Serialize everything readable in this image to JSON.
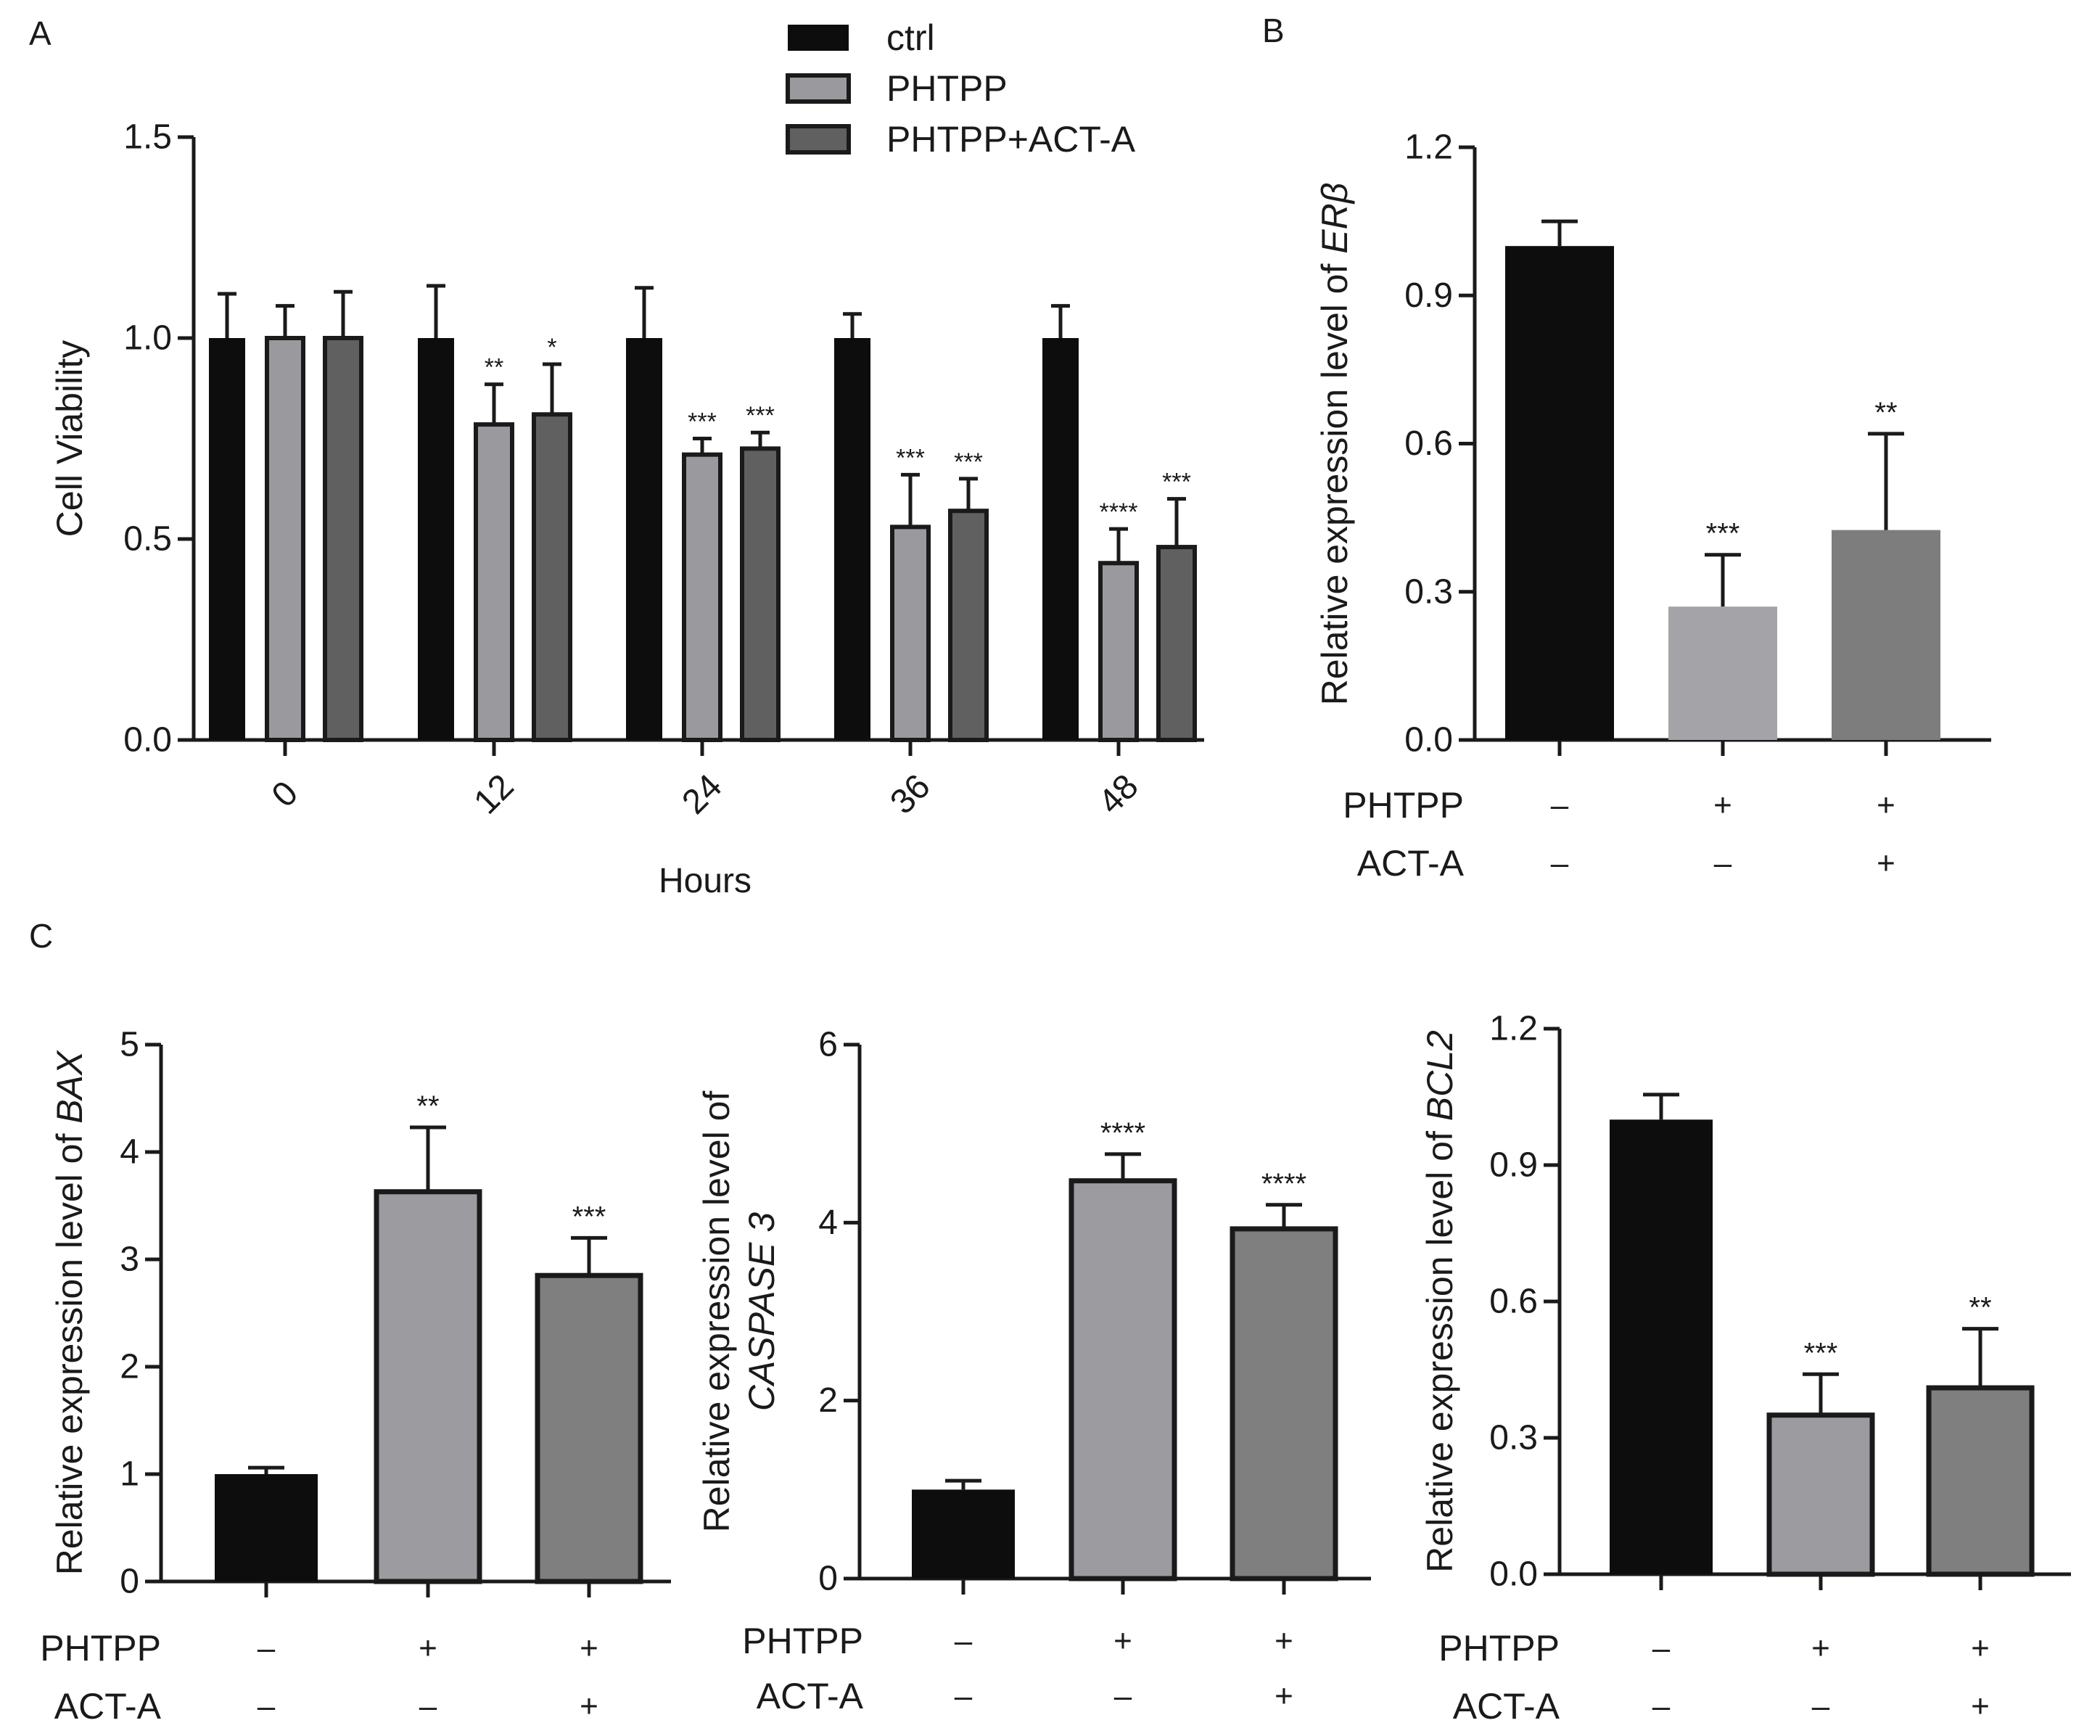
{
  "chart_data": [
    {
      "panel": "A",
      "type": "bar",
      "title": "",
      "xlabel": "Hours",
      "ylabel": "Cell Viability",
      "ylim": [
        0,
        1.5
      ],
      "yticks": [
        "0.0",
        "0.5",
        "1.0",
        "1.5"
      ],
      "categories": [
        "0",
        "12",
        "24",
        "36",
        "48"
      ],
      "legend_position": "top",
      "series": [
        {
          "name": "ctrl",
          "color": "#0d0d0d",
          "values": [
            1.0,
            1.0,
            1.0,
            1.0,
            1.0
          ],
          "errors": [
            0.11,
            0.13,
            0.125,
            0.06,
            0.08
          ],
          "sig": [
            "",
            "",
            "",
            "",
            ""
          ]
        },
        {
          "name": "PHTPP",
          "color": "#9a9a9e",
          "values": [
            1.0,
            0.785,
            0.71,
            0.53,
            0.44
          ],
          "errors": [
            0.08,
            0.1,
            0.04,
            0.13,
            0.085
          ],
          "sig": [
            "",
            "**",
            "***",
            "***",
            "****"
          ]
        },
        {
          "name": "PHTPP+ACT-A",
          "color": "#606060",
          "values": [
            1.0,
            0.81,
            0.725,
            0.57,
            0.48
          ],
          "errors": [
            0.115,
            0.125,
            0.04,
            0.08,
            0.12
          ],
          "sig": [
            "",
            "*",
            "***",
            "***",
            "***"
          ]
        }
      ]
    },
    {
      "panel": "B",
      "type": "bar",
      "title": "",
      "ylabel_prefix": "Relative expression level of ",
      "ylabel_gene": "ERβ",
      "ylim": [
        0,
        1.2
      ],
      "yticks": [
        "0.0",
        "0.3",
        "0.6",
        "0.9",
        "1.2"
      ],
      "values": [
        1.0,
        0.27,
        0.425
      ],
      "errors": [
        0.05,
        0.105,
        0.195
      ],
      "sig": [
        "",
        "***",
        "**"
      ],
      "colors": [
        "#0d0d0d",
        "#a4a4a8",
        "#7d7d7d"
      ],
      "outlined": false,
      "treatment_rows": [
        {
          "label": "PHTPP",
          "signs": [
            "–",
            "+",
            "+"
          ]
        },
        {
          "label": "ACT-A",
          "signs": [
            "–",
            "–",
            "+"
          ]
        }
      ]
    },
    {
      "panel": "C",
      "type": "bar",
      "title": "",
      "ylabel_prefix": "Relative expression level of ",
      "ylabel_gene": "BAX",
      "ylim": [
        0,
        5
      ],
      "yticks": [
        "0",
        "1",
        "2",
        "3",
        "4",
        "5"
      ],
      "values": [
        1.0,
        3.63,
        2.85
      ],
      "errors": [
        0.06,
        0.6,
        0.35
      ],
      "sig": [
        "",
        "**",
        "***"
      ],
      "colors": [
        "#0d0d0d",
        "#9c9ca0",
        "#7f7f7f"
      ],
      "outlined": true,
      "treatment_rows": [
        {
          "label": "PHTPP",
          "signs": [
            "–",
            "+",
            "+"
          ]
        },
        {
          "label": "ACT-A",
          "signs": [
            "–",
            "–",
            "+"
          ]
        }
      ]
    },
    {
      "panel": "",
      "type": "bar",
      "title": "",
      "ylabel_prefix": "Relative expression level of",
      "ylabel_gene": "CASPASE 3",
      "ylim": [
        0,
        6
      ],
      "yticks": [
        "0",
        "2",
        "4",
        "6"
      ],
      "values": [
        1.0,
        4.47,
        3.93
      ],
      "errors": [
        0.1,
        0.3,
        0.27
      ],
      "sig": [
        "",
        "****",
        "****"
      ],
      "colors": [
        "#0d0d0d",
        "#9c9ca0",
        "#7f7f7f"
      ],
      "outlined": true,
      "treatment_rows": [
        {
          "label": "PHTPP",
          "signs": [
            "–",
            "+",
            "+"
          ]
        },
        {
          "label": "ACT-A",
          "signs": [
            "–",
            "–",
            "+"
          ]
        }
      ]
    },
    {
      "panel": "",
      "type": "bar",
      "title": "",
      "ylabel_prefix": "Relative expression level of ",
      "ylabel_gene": "BCL2",
      "ylim": [
        0,
        1.2
      ],
      "yticks": [
        "0.0",
        "0.3",
        "0.6",
        "0.9",
        "1.2"
      ],
      "values": [
        1.0,
        0.35,
        0.41
      ],
      "errors": [
        0.055,
        0.09,
        0.13
      ],
      "sig": [
        "",
        "***",
        "**"
      ],
      "colors": [
        "#0d0d0d",
        "#9c9ca0",
        "#7f7f7f"
      ],
      "outlined": true,
      "treatment_rows": [
        {
          "label": "PHTPP",
          "signs": [
            "–",
            "+",
            "+"
          ]
        },
        {
          "label": "ACT-A",
          "signs": [
            "–",
            "–",
            "+"
          ]
        }
      ]
    }
  ]
}
